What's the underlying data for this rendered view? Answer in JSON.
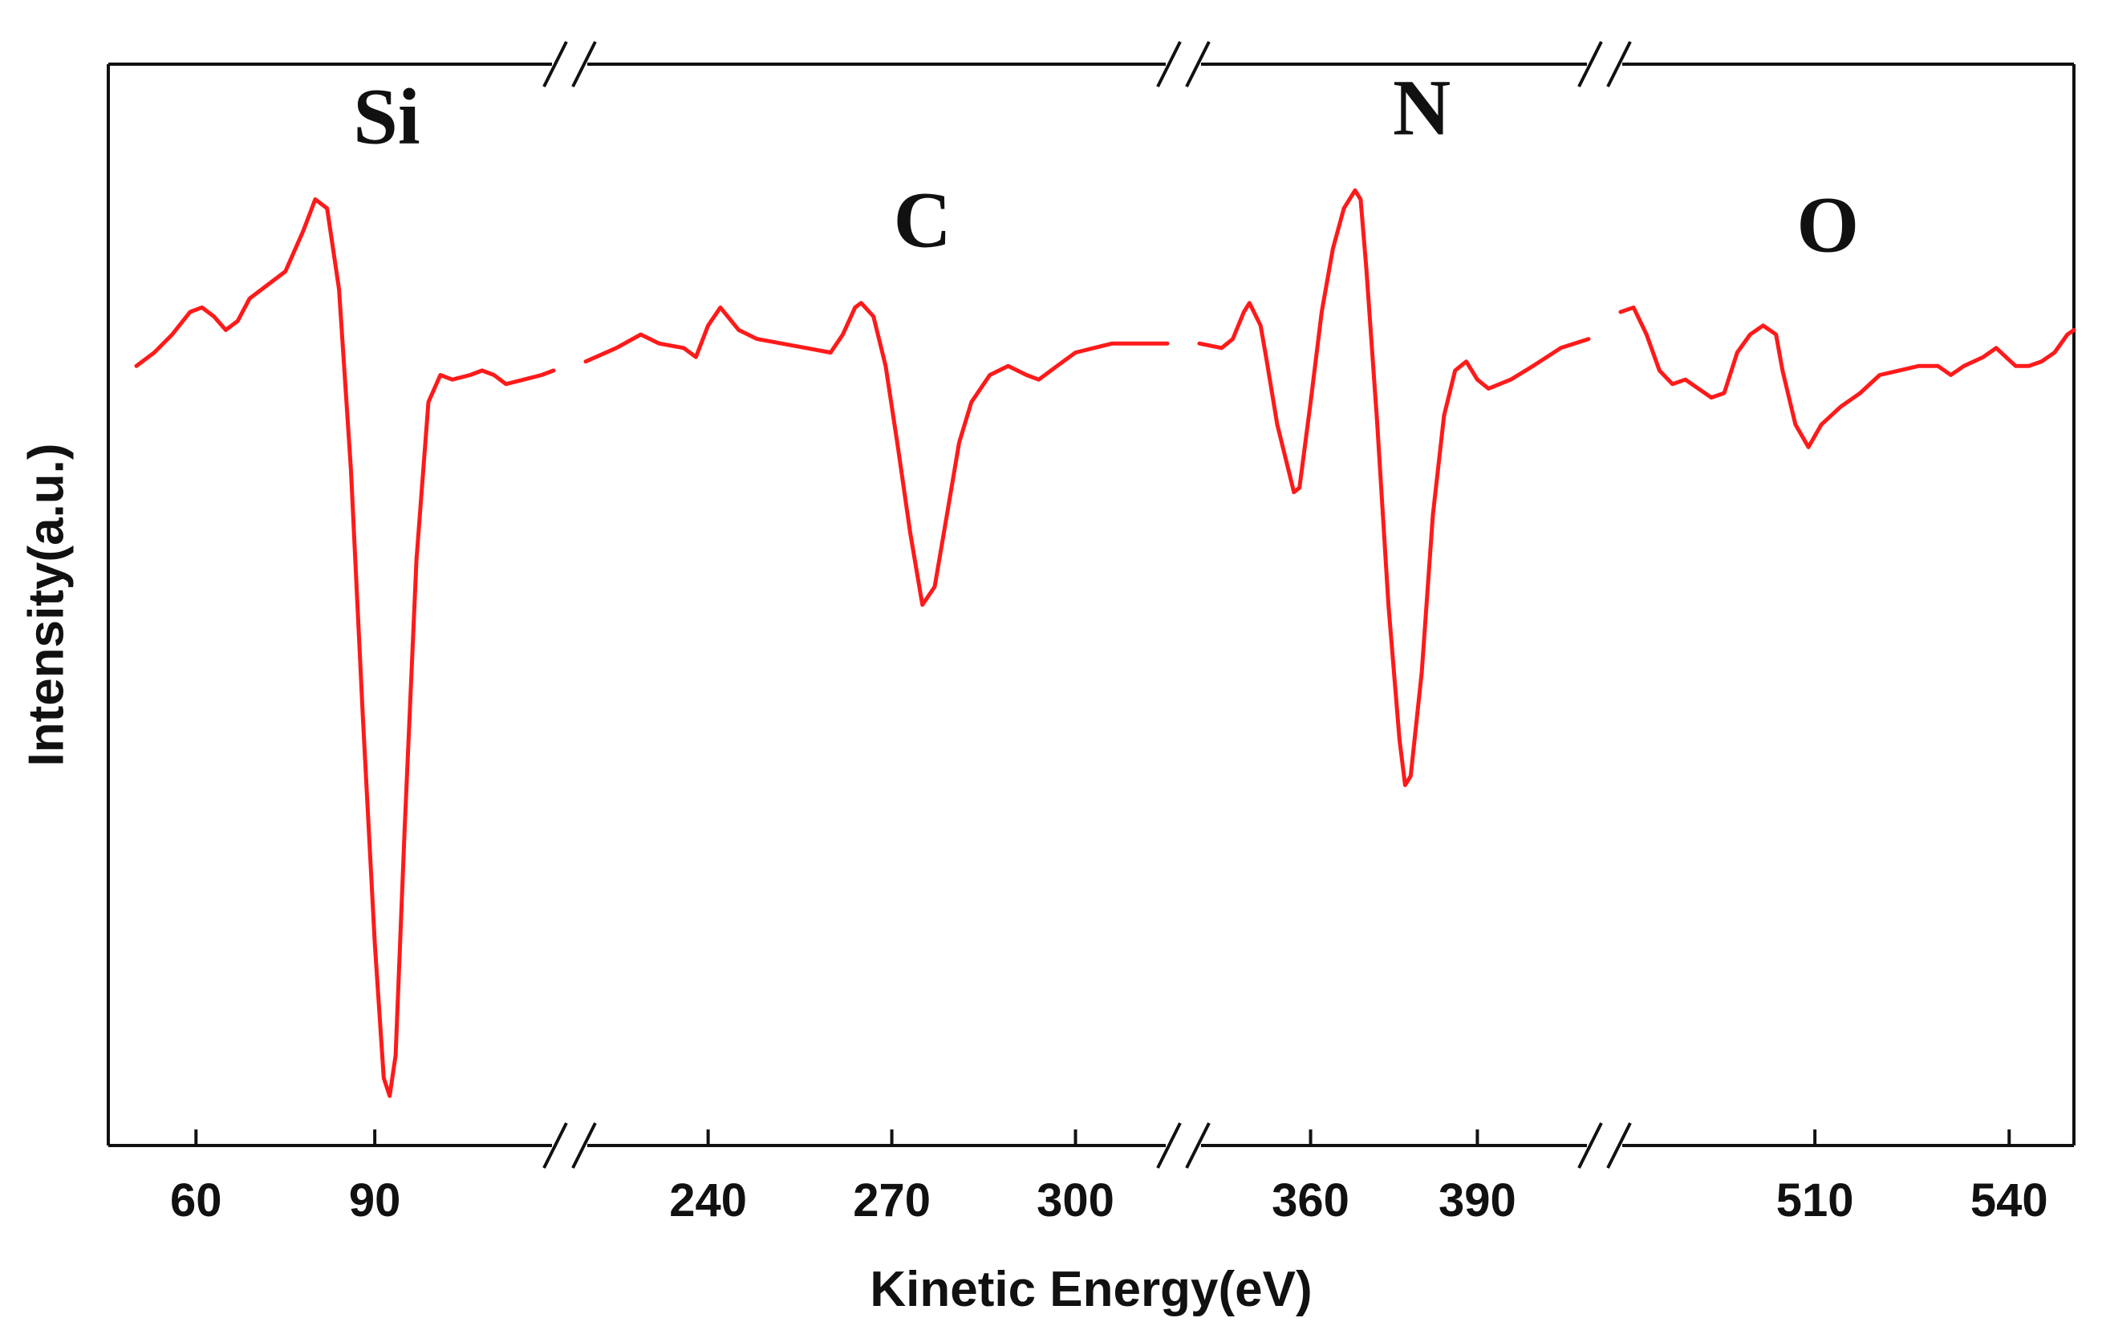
{
  "chart_data": {
    "type": "line",
    "title": "",
    "xlabel": "Kinetic Energy(eV)",
    "ylabel": "Intensity(a.u.)",
    "y_tick_labels": false,
    "line_color": "#ff1a1a",
    "axis_breaks": true,
    "segments": [
      {
        "xlim": [
          50,
          120
        ],
        "ticks": [
          60,
          90
        ],
        "peak_label": "Si",
        "peak_label_x": 92,
        "points": [
          [
            50,
            0.73
          ],
          [
            53,
            0.76
          ],
          [
            56,
            0.8
          ],
          [
            59,
            0.85
          ],
          [
            61,
            0.86
          ],
          [
            63,
            0.84
          ],
          [
            65,
            0.81
          ],
          [
            67,
            0.83
          ],
          [
            69,
            0.88
          ],
          [
            72,
            0.91
          ],
          [
            75,
            0.94
          ],
          [
            78,
            1.03
          ],
          [
            80,
            1.1
          ],
          [
            82,
            1.08
          ],
          [
            84,
            0.9
          ],
          [
            86,
            0.5
          ],
          [
            88,
            -0.05
          ],
          [
            90,
            -0.55
          ],
          [
            91.5,
            -0.85
          ],
          [
            92.5,
            -0.89
          ],
          [
            93.5,
            -0.8
          ],
          [
            95,
            -0.3
          ],
          [
            97,
            0.3
          ],
          [
            99,
            0.65
          ],
          [
            101,
            0.71
          ],
          [
            103,
            0.7
          ],
          [
            106,
            0.71
          ],
          [
            108,
            0.72
          ],
          [
            110,
            0.71
          ],
          [
            112,
            0.69
          ],
          [
            115,
            0.7
          ],
          [
            118,
            0.71
          ],
          [
            120,
            0.72
          ]
        ]
      },
      {
        "xlim": [
          220,
          315
        ],
        "ticks": [
          240,
          270,
          300
        ],
        "peak_label": "C",
        "peak_label_x": 275,
        "points": [
          [
            220,
            0.74
          ],
          [
            225,
            0.77
          ],
          [
            229,
            0.8
          ],
          [
            232,
            0.78
          ],
          [
            236,
            0.77
          ],
          [
            238,
            0.75
          ],
          [
            240,
            0.82
          ],
          [
            242,
            0.86
          ],
          [
            245,
            0.81
          ],
          [
            248,
            0.79
          ],
          [
            252,
            0.78
          ],
          [
            256,
            0.77
          ],
          [
            260,
            0.76
          ],
          [
            262,
            0.8
          ],
          [
            264,
            0.86
          ],
          [
            265,
            0.87
          ],
          [
            267,
            0.84
          ],
          [
            269,
            0.73
          ],
          [
            271,
            0.55
          ],
          [
            273,
            0.36
          ],
          [
            275,
            0.2
          ],
          [
            277,
            0.24
          ],
          [
            279,
            0.4
          ],
          [
            281,
            0.56
          ],
          [
            283,
            0.65
          ],
          [
            286,
            0.71
          ],
          [
            289,
            0.73
          ],
          [
            292,
            0.71
          ],
          [
            294,
            0.7
          ],
          [
            297,
            0.73
          ],
          [
            300,
            0.76
          ],
          [
            303,
            0.77
          ],
          [
            306,
            0.78
          ],
          [
            310,
            0.78
          ],
          [
            315,
            0.78
          ]
        ]
      },
      {
        "xlim": [
          340,
          410
        ],
        "ticks": [
          360,
          390
        ],
        "peak_label": "N",
        "peak_label_x": 380,
        "points": [
          [
            340,
            0.78
          ],
          [
            344,
            0.77
          ],
          [
            346,
            0.79
          ],
          [
            348,
            0.85
          ],
          [
            349,
            0.87
          ],
          [
            351,
            0.82
          ],
          [
            352,
            0.75
          ],
          [
            354,
            0.6
          ],
          [
            356,
            0.5
          ],
          [
            357,
            0.45
          ],
          [
            358,
            0.46
          ],
          [
            360,
            0.65
          ],
          [
            362,
            0.85
          ],
          [
            364,
            0.99
          ],
          [
            366,
            1.08
          ],
          [
            368,
            1.12
          ],
          [
            369,
            1.1
          ],
          [
            370,
            0.95
          ],
          [
            372,
            0.6
          ],
          [
            374,
            0.2
          ],
          [
            376,
            -0.1
          ],
          [
            377,
            -0.2
          ],
          [
            378,
            -0.18
          ],
          [
            380,
            0.05
          ],
          [
            382,
            0.4
          ],
          [
            384,
            0.62
          ],
          [
            386,
            0.72
          ],
          [
            388,
            0.74
          ],
          [
            390,
            0.7
          ],
          [
            392,
            0.68
          ],
          [
            396,
            0.7
          ],
          [
            400,
            0.73
          ],
          [
            405,
            0.77
          ],
          [
            410,
            0.79
          ]
        ]
      },
      {
        "xlim": [
          480,
          550
        ],
        "ticks": [
          510,
          540
        ],
        "peak_label": "O",
        "peak_label_x": 512,
        "points": [
          [
            480,
            0.85
          ],
          [
            482,
            0.86
          ],
          [
            484,
            0.8
          ],
          [
            486,
            0.72
          ],
          [
            488,
            0.69
          ],
          [
            490,
            0.7
          ],
          [
            492,
            0.68
          ],
          [
            494,
            0.66
          ],
          [
            496,
            0.67
          ],
          [
            498,
            0.76
          ],
          [
            500,
            0.8
          ],
          [
            502,
            0.82
          ],
          [
            504,
            0.8
          ],
          [
            505,
            0.72
          ],
          [
            507,
            0.6
          ],
          [
            509,
            0.55
          ],
          [
            511,
            0.6
          ],
          [
            514,
            0.64
          ],
          [
            517,
            0.67
          ],
          [
            520,
            0.71
          ],
          [
            523,
            0.72
          ],
          [
            526,
            0.73
          ],
          [
            529,
            0.73
          ],
          [
            531,
            0.71
          ],
          [
            533,
            0.73
          ],
          [
            536,
            0.75
          ],
          [
            538,
            0.77
          ],
          [
            541,
            0.73
          ],
          [
            543,
            0.73
          ],
          [
            545,
            0.74
          ],
          [
            547,
            0.76
          ],
          [
            549,
            0.8
          ],
          [
            550,
            0.81
          ]
        ]
      }
    ],
    "ylim": [
      -1.0,
      1.4
    ]
  }
}
